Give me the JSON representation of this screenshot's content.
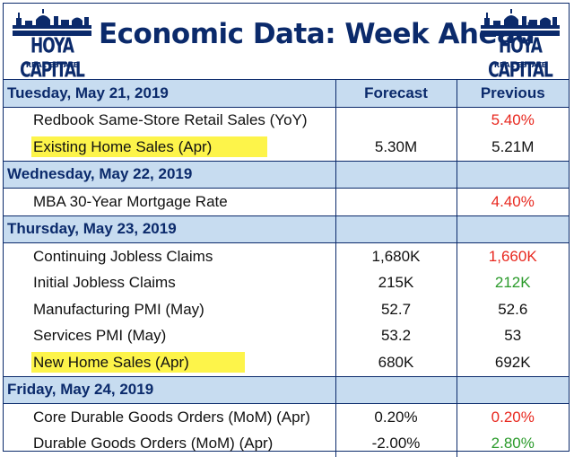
{
  "header": {
    "title": "Economic Data: Week Ahead",
    "logo_brand": "HOYA CAPITAL",
    "logo_sub": "REAL ESTATE"
  },
  "columns": {
    "forecast": "Forecast",
    "previous": "Previous"
  },
  "colors": {
    "navy": "#0b2a6b",
    "day_row": "#c7dcf0",
    "highlight": "#fdf44a",
    "red": "#e8281f",
    "green": "#2a9a2a"
  },
  "days": [
    {
      "date": "Tuesday, May 21, 2019",
      "items": [
        {
          "name": "Redbook Same-Store Retail Sales (YoY)",
          "forecast": "",
          "previous": "5.40%",
          "previous_color": "red",
          "highlight": false
        },
        {
          "name": "Existing Home Sales (Apr)",
          "forecast": "5.30M",
          "previous": "5.21M",
          "previous_color": "black",
          "highlight": true
        }
      ]
    },
    {
      "date": "Wednesday, May 22, 2019",
      "items": [
        {
          "name": "MBA 30-Year Mortgage Rate",
          "forecast": "",
          "previous": "4.40%",
          "previous_color": "red",
          "highlight": false
        }
      ]
    },
    {
      "date": "Thursday, May 23, 2019",
      "items": [
        {
          "name": "Continuing Jobless Claims",
          "forecast": "1,680K",
          "previous": "1,660K",
          "previous_color": "red",
          "highlight": false
        },
        {
          "name": "Initial Jobless Claims",
          "forecast": "215K",
          "previous": "212K",
          "previous_color": "green",
          "highlight": false
        },
        {
          "name": "Manufacturing PMI (May)",
          "forecast": "52.7",
          "previous": "52.6",
          "previous_color": "black",
          "highlight": false
        },
        {
          "name": "Services PMI (May)",
          "forecast": "53.2",
          "previous": "53",
          "previous_color": "black",
          "highlight": false
        },
        {
          "name": "New Home Sales (Apr)",
          "forecast": "680K",
          "previous": "692K",
          "previous_color": "black",
          "highlight": true
        }
      ]
    },
    {
      "date": "Friday, May 24, 2019",
      "items": [
        {
          "name": "Core Durable Goods Orders (MoM) (Apr)",
          "forecast": "0.20%",
          "previous": "0.20%",
          "previous_color": "red",
          "highlight": false
        },
        {
          "name": "Durable Goods Orders (MoM) (Apr)",
          "forecast": "-2.00%",
          "previous": "2.80%",
          "previous_color": "green",
          "highlight": false
        }
      ]
    }
  ]
}
